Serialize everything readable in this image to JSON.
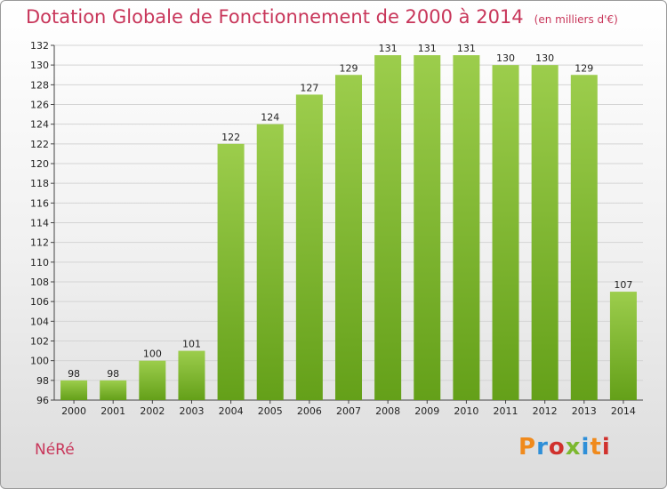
{
  "header": {
    "title": "Dotation Globale de Fonctionnement de 2000 à 2014",
    "subtitle": "(en milliers d'€)"
  },
  "footer": {
    "commune": "NéRé",
    "logo": "Proxiti"
  },
  "colors": {
    "title": "#c8365a",
    "bar_light": "#9ccd4c",
    "bar_dark": "#64a019",
    "logo": [
      "#f08a1c",
      "#2f8fd8",
      "#d0312d",
      "#7cb82f",
      "#2f8fd8",
      "#f08a1c",
      "#d0312d"
    ]
  },
  "chart_data": {
    "type": "bar",
    "title": "Dotation Globale de Fonctionnement de 2000 à 2014",
    "subtitle": "(en milliers d'€)",
    "categories": [
      "2000",
      "2001",
      "2002",
      "2003",
      "2004",
      "2005",
      "2006",
      "2007",
      "2008",
      "2009",
      "2010",
      "2011",
      "2012",
      "2013",
      "2014"
    ],
    "values": [
      98,
      98,
      100,
      101,
      122,
      124,
      127,
      129,
      131,
      131,
      131,
      130,
      130,
      129,
      107
    ],
    "ylim": [
      96,
      132
    ],
    "yticks": [
      96,
      98,
      100,
      102,
      104,
      106,
      108,
      110,
      112,
      114,
      116,
      118,
      120,
      122,
      124,
      126,
      128,
      130,
      132
    ],
    "grid": true,
    "legend": "none"
  }
}
